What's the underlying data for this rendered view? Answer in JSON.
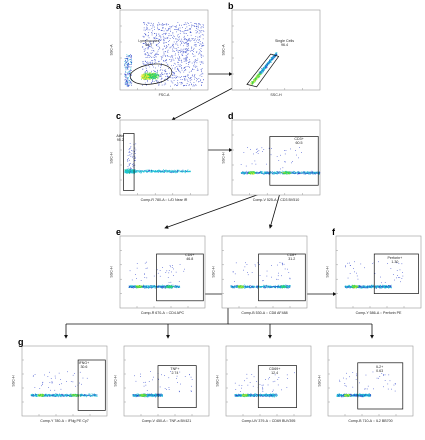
{
  "colors": {
    "frame": "#9a9a9a",
    "gate": "#111111",
    "arrow": "#111111",
    "events_low": "#2a3fc8",
    "events_mid": "#1ec3d6",
    "events_high": "#34d64a",
    "events_peak": "#f2e93a"
  },
  "panels": {
    "a": {
      "letter": "a",
      "xlabel": "FSC-A",
      "ylabel": "SSC-A",
      "gate_name": "Lymphocytes",
      "gate_value": "54.7"
    },
    "b": {
      "letter": "b",
      "xlabel": "SSC-H",
      "ylabel": "SSC-A",
      "gate_name": "Single Cells",
      "gate_value": "96.4"
    },
    "c": {
      "letter": "c",
      "xlabel": "Comp-R 780-A :: L/D Near IR",
      "ylabel": "SSC-H",
      "gate_name": "Alive",
      "gate_value": "95.2"
    },
    "d": {
      "letter": "d",
      "xlabel": "Comp-V 525-A :: CD3 BV510",
      "ylabel": "SSC-H",
      "gate_name": "CD3+",
      "gate_value": "60.5"
    },
    "e": {
      "letter": "e",
      "xlabel": "Comp-R 670-A :: CD4 APC",
      "ylabel": "SSC-H",
      "gate_name": "CD4+",
      "gate_value": "46.8"
    },
    "e2": {
      "letter": "",
      "xlabel": "Comp-B 530-A :: CD8 AF488",
      "ylabel": "SSC-H",
      "gate_name": "CD8+",
      "gate_value": "31.2"
    },
    "f": {
      "letter": "f",
      "xlabel": "Comp-Y 586-A :: Perforin PE",
      "ylabel": "SSC-H",
      "gate_name": "Perforin+",
      "gate_value": "1.30"
    },
    "g": {
      "letter": "g",
      "xlabel": "Comp-Y 780-A :: IFNg PE Cy7",
      "ylabel": "SSC-H",
      "gate_name": "IFNG+",
      "gate_value": "30.6"
    },
    "g2": {
      "letter": "",
      "xlabel": "Comp-V 450-A :: TNF-a BV421",
      "ylabel": "SSC-H",
      "gate_name": "TNF+",
      "gate_value": "2.74"
    },
    "g3": {
      "letter": "",
      "xlabel": "Comp-UV 379-A :: CD69 BUV395",
      "ylabel": "SSC-H",
      "gate_name": "CD69+",
      "gate_value": "12.4"
    },
    "g4": {
      "letter": "",
      "xlabel": "Comp-B 710-A :: IL2 BB700",
      "ylabel": "SSC-H",
      "gate_name": "IL2+",
      "gate_value": "0.63"
    }
  }
}
